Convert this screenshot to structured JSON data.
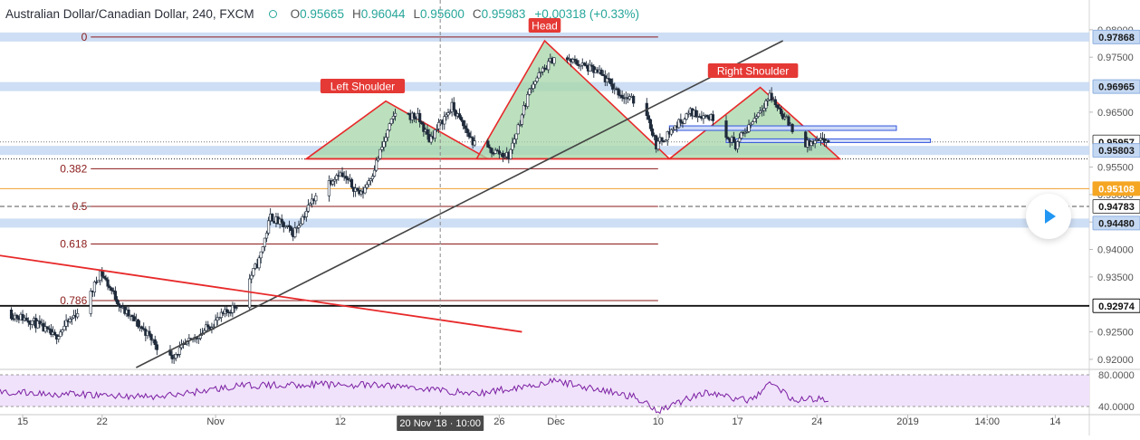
{
  "header": {
    "symbol": "Australian Dollar/Canadian Dollar, 240, FXCM",
    "open_label": "O",
    "open": "0.95665",
    "high_label": "H",
    "high": "0.96044",
    "low_label": "L",
    "low": "0.95600",
    "close_label": "C",
    "close": "0.95983",
    "change": "+0.00318 (+0.33%)"
  },
  "colors": {
    "up": "#26a69a",
    "down": "#ef5350",
    "trend": "#e8292a",
    "fib": "#8b1a1a",
    "pattern_fill": "#a5d6a7",
    "sr_band": "#c5d8f2",
    "rsi_fill": "#f0e2fb",
    "rsi_line": "#7b1fa2",
    "accent": "#2196f3",
    "orange": "#f0a030"
  },
  "price_axis": {
    "ticks": [
      "0.98000",
      "0.97500",
      "0.96500",
      "0.95500",
      "0.95000",
      "0.94500",
      "0.94000",
      "0.93500",
      "0.92500",
      "0.92000"
    ],
    "labels": [
      {
        "text": "0.97868",
        "style": "blue"
      },
      {
        "text": "0.96965",
        "style": "blue"
      },
      {
        "text": "0.95957",
        "style": "dark"
      },
      {
        "text": "0.95803",
        "style": "blue"
      },
      {
        "text": "0.95108",
        "style": "orange"
      },
      {
        "text": "0.94783",
        "style": "dark"
      },
      {
        "text": "0.94480",
        "style": "blue"
      },
      {
        "text": "0.92974",
        "style": "black"
      }
    ]
  },
  "rsi_axis": {
    "ticks": [
      "80.0000",
      "40.0000"
    ]
  },
  "time_axis": {
    "ticks": [
      "15",
      "22",
      "Nov",
      "12",
      "26",
      "Dec",
      "10",
      "17",
      "24",
      "2019",
      "14:00",
      "14"
    ],
    "crosshair_label": "20 Nov '18 · 10:00"
  },
  "annotations": {
    "head": "Head",
    "left_shoulder": "Left Shoulder",
    "right_shoulder": "Right Shoulder"
  },
  "fib_levels": [
    {
      "label": "0",
      "price": 0.97868
    },
    {
      "label": "0.382",
      "price": 0.9547
    },
    {
      "label": "0.5",
      "price": 0.94783
    },
    {
      "label": "0.618",
      "price": 0.941
    },
    {
      "label": "0.786",
      "price": 0.9307
    }
  ],
  "horizontal_levels": [
    {
      "price": 0.97868,
      "kind": "band"
    },
    {
      "price": 0.96965,
      "kind": "band"
    },
    {
      "price": 0.95803,
      "kind": "band"
    },
    {
      "price": 0.9448,
      "kind": "band"
    },
    {
      "price": 0.95108,
      "kind": "orange"
    },
    {
      "price": 0.94783,
      "kind": "dashed"
    },
    {
      "price": 0.92974,
      "kind": "black"
    },
    {
      "price": 0.95957,
      "kind": "dotted"
    }
  ],
  "chart_data": {
    "type": "candlestick",
    "title": "Australian Dollar/Canadian Dollar, 240, FXCM",
    "x_range": [
      "2018-10-13",
      "2019-01-17"
    ],
    "y_range": [
      0.9185,
      0.9808
    ],
    "last_price": 0.95983,
    "ohlc": {
      "open": 0.95665,
      "high": 0.96044,
      "low": 0.956,
      "close": 0.95983
    },
    "price_path": [
      [
        "2018-10-13",
        0.929
      ],
      [
        "2018-10-16",
        0.927
      ],
      [
        "2018-10-18",
        0.924
      ],
      [
        "2018-10-21",
        0.931
      ],
      [
        "2018-10-22",
        0.936
      ],
      [
        "2018-10-24",
        0.929
      ],
      [
        "2018-10-26",
        0.925
      ],
      [
        "2018-10-28",
        0.92
      ],
      [
        "2018-10-31",
        0.925
      ],
      [
        "2018-11-03",
        0.93
      ],
      [
        "2018-11-05",
        0.938
      ],
      [
        "2018-11-06",
        0.946
      ],
      [
        "2018-11-08",
        0.943
      ],
      [
        "2018-11-10",
        0.95
      ],
      [
        "2018-11-12",
        0.954
      ],
      [
        "2018-11-14",
        0.95
      ],
      [
        "2018-11-15",
        0.954
      ],
      [
        "2018-11-17",
        0.965
      ],
      [
        "2018-11-19",
        0.964
      ],
      [
        "2018-11-20",
        0.96
      ],
      [
        "2018-11-22",
        0.966
      ],
      [
        "2018-11-24",
        0.959
      ],
      [
        "2018-11-27",
        0.957
      ],
      [
        "2018-11-29",
        0.97
      ],
      [
        "2018-12-01",
        0.975
      ],
      [
        "2018-12-03",
        0.974
      ],
      [
        "2018-12-05",
        0.972
      ],
      [
        "2018-12-07",
        0.968
      ],
      [
        "2018-12-09",
        0.966
      ],
      [
        "2018-12-10",
        0.959
      ],
      [
        "2018-12-11",
        0.961
      ],
      [
        "2018-12-13",
        0.965
      ],
      [
        "2018-12-15",
        0.964
      ],
      [
        "2018-12-17",
        0.959
      ],
      [
        "2018-12-18",
        0.962
      ],
      [
        "2018-12-20",
        0.968
      ],
      [
        "2018-12-22",
        0.962
      ],
      [
        "2018-12-23",
        0.959
      ],
      [
        "2018-12-25",
        0.9598
      ]
    ],
    "rsi": {
      "levels": [
        80,
        40
      ],
      "values": [
        [
          "2018-10-13",
          58
        ],
        [
          "2018-10-20",
          55
        ],
        [
          "2018-10-27",
          52
        ],
        [
          "2018-11-03",
          66
        ],
        [
          "2018-11-10",
          68
        ],
        [
          "2018-11-17",
          66
        ],
        [
          "2018-11-24",
          56
        ],
        [
          "2018-12-01",
          72
        ],
        [
          "2018-12-08",
          52
        ],
        [
          "2018-12-10",
          35
        ],
        [
          "2018-12-14",
          58
        ],
        [
          "2018-12-18",
          47
        ],
        [
          "2018-12-20",
          70
        ],
        [
          "2018-12-22",
          48
        ],
        [
          "2018-12-25",
          50
        ]
      ]
    },
    "trendlines": [
      {
        "name": "ascending",
        "from": [
          "2018-10-25",
          0.9185
        ],
        "to": [
          "2018-12-21",
          0.978
        ]
      },
      {
        "name": "descending",
        "from": [
          "2018-10-11",
          0.9395
        ],
        "to": [
          "2018-11-28",
          0.925
        ]
      }
    ],
    "pattern": {
      "type": "head-and-shoulders",
      "neckline": 0.9565,
      "left_shoulder": [
        "2018-11-16",
        0.967
      ],
      "head": [
        "2018-11-30",
        0.978
      ],
      "right_shoulder": [
        "2018-12-19",
        0.9695
      ]
    }
  }
}
